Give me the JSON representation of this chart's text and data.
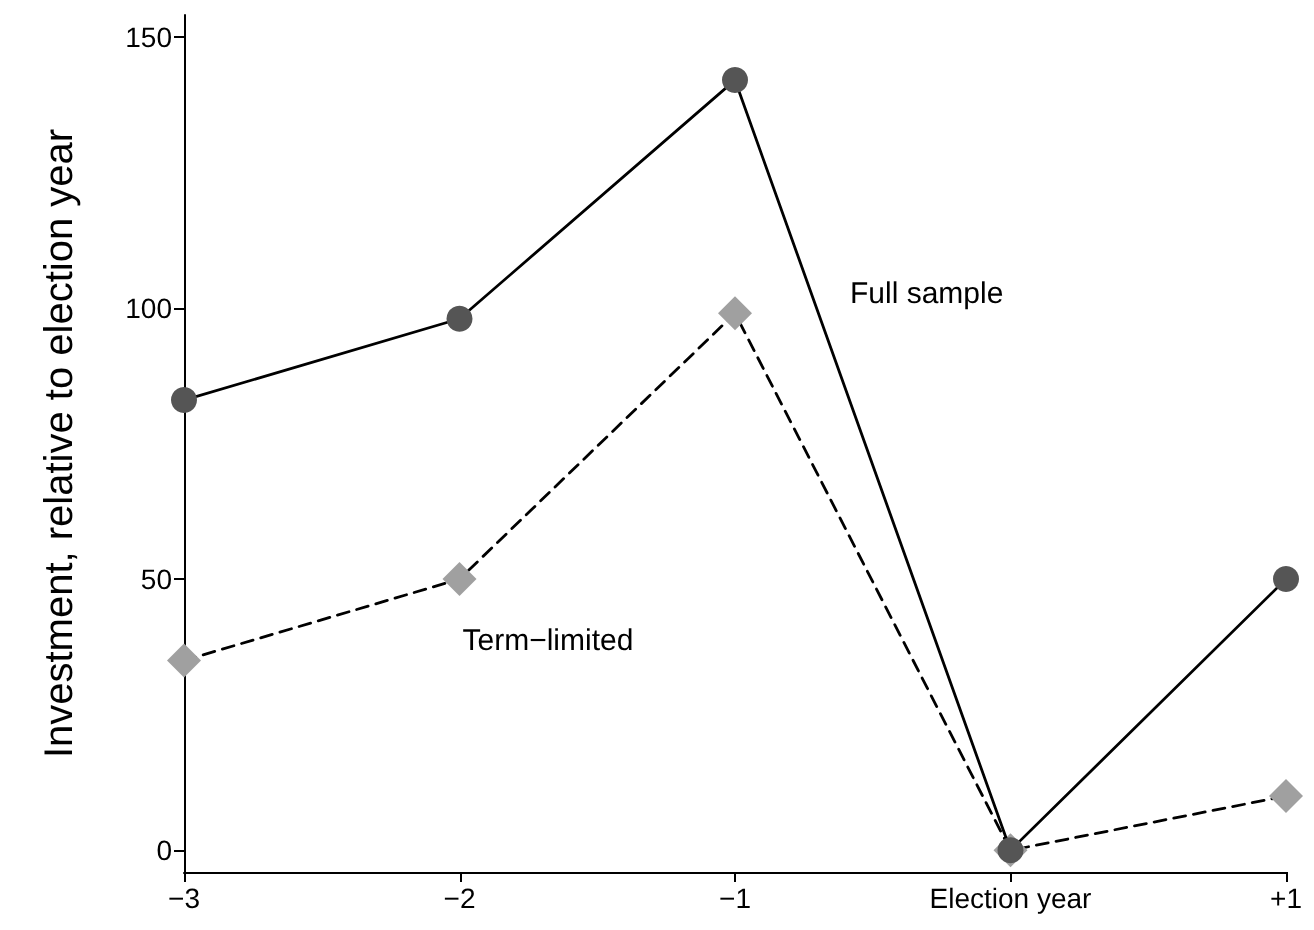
{
  "chart_data": {
    "type": "line",
    "ylabel": "Investment, relative to election year",
    "categories": [
      "−3",
      "−2",
      "−1",
      "Election year",
      "+1"
    ],
    "series": [
      {
        "name": "Full sample",
        "color": "#555555",
        "marker": "circle",
        "line_style": "solid",
        "values": [
          83,
          98,
          142,
          0,
          50
        ]
      },
      {
        "name": "Term−limited",
        "color": "#a0a0a0",
        "marker": "diamond",
        "line_style": "dashed",
        "values": [
          35,
          50,
          99,
          0,
          10
        ]
      }
    ],
    "ylim": [
      -4,
      154
    ],
    "yticks": [
      0,
      50,
      100,
      150
    ],
    "grid": false,
    "legend": false
  }
}
